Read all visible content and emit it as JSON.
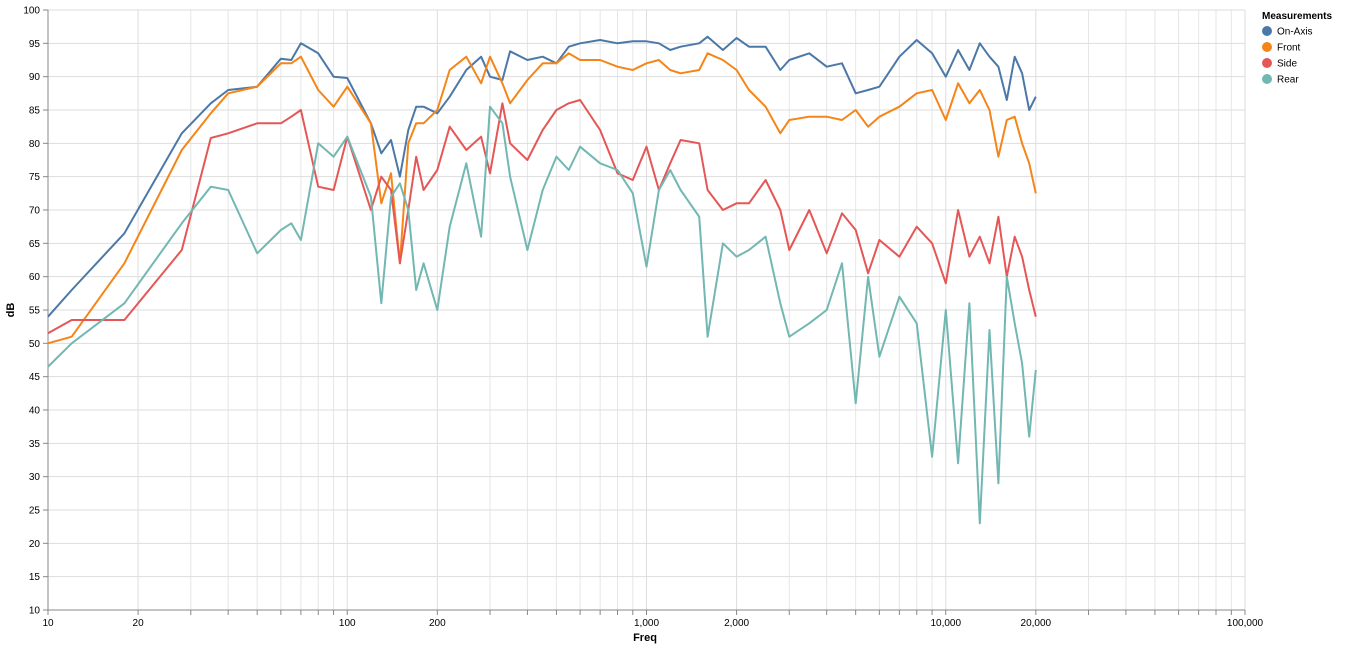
{
  "chart_data": {
    "type": "line",
    "x_label": "Freq",
    "y_label": "dB",
    "legend_title": "Measurements",
    "legend_position": "top-right",
    "log_x": true,
    "grid": true,
    "xlim": [
      10,
      100000
    ],
    "xticks": [
      10,
      20,
      100,
      200,
      {
        "value": 1000,
        "label": "1,000"
      },
      {
        "value": 2000,
        "label": "2,000"
      },
      {
        "value": 10000,
        "label": "10,000"
      },
      {
        "value": 20000,
        "label": "20,000"
      },
      {
        "value": 100000,
        "label": "100,000"
      }
    ],
    "xminor": [
      30,
      40,
      50,
      60,
      70,
      80,
      90,
      300,
      400,
      500,
      600,
      700,
      800,
      900,
      3000,
      4000,
      5000,
      6000,
      7000,
      8000,
      9000,
      30000,
      40000,
      50000,
      60000,
      70000,
      80000,
      90000
    ],
    "ylim": [
      10,
      100
    ],
    "yticks": [
      10,
      15,
      20,
      25,
      30,
      35,
      40,
      45,
      50,
      55,
      60,
      65,
      70,
      75,
      80,
      85,
      90,
      95,
      100
    ],
    "x": [
      10,
      12,
      18,
      28,
      35,
      40,
      50,
      60,
      65,
      70,
      80,
      90,
      100,
      120,
      130,
      140,
      150,
      160,
      170,
      180,
      200,
      220,
      250,
      280,
      300,
      330,
      350,
      400,
      450,
      500,
      550,
      600,
      700,
      800,
      900,
      1000,
      1100,
      1200,
      1300,
      1500,
      1600,
      1800,
      2000,
      2200,
      2500,
      2800,
      3000,
      3500,
      4000,
      4500,
      5000,
      5500,
      6000,
      7000,
      8000,
      9000,
      10000,
      11000,
      12000,
      13000,
      14000,
      15000,
      16000,
      17000,
      18000,
      19000,
      20000
    ],
    "series": [
      {
        "name": "On-Axis",
        "color": "#4c78a8",
        "values": [
          54,
          58,
          66.5,
          81.5,
          86,
          88,
          88.5,
          92.7,
          92.5,
          95,
          93.5,
          90,
          89.8,
          83,
          78.5,
          80.5,
          75,
          82,
          85.5,
          85.5,
          84.5,
          87,
          91,
          93,
          90,
          89.5,
          93.8,
          92.5,
          93,
          92,
          94.5,
          95,
          95.5,
          95,
          95.3,
          95.3,
          95,
          94,
          94.5,
          95,
          96,
          94,
          95.8,
          94.5,
          94.5,
          91,
          92.5,
          93.5,
          91.5,
          92,
          87.5,
          88,
          88.5,
          93,
          95.5,
          93.5,
          90,
          94,
          91,
          95,
          93,
          91.5,
          86.5,
          93,
          90.5,
          85,
          87
        ]
      },
      {
        "name": "Front",
        "color": "#f58518",
        "values": [
          50,
          51,
          62,
          79,
          84.5,
          87.5,
          88.5,
          92,
          92,
          93,
          88,
          85.5,
          88.5,
          83,
          71,
          75.5,
          62,
          80,
          83,
          83,
          85,
          91,
          93,
          89,
          93,
          89,
          86,
          89.5,
          92,
          92,
          93.5,
          92.5,
          92.5,
          91.5,
          91,
          92,
          92.5,
          91,
          90.5,
          91,
          93.5,
          92.5,
          91,
          88,
          85.5,
          81.5,
          83.5,
          84,
          84,
          83.5,
          85,
          82.5,
          84,
          85.5,
          87.5,
          88,
          83.5,
          89,
          86,
          88,
          85,
          78,
          83.5,
          84,
          80,
          77,
          72.5
        ]
      },
      {
        "name": "Side",
        "color": "#e45756",
        "values": [
          51.5,
          53.5,
          53.5,
          64,
          80.8,
          81.5,
          83,
          83,
          84,
          85,
          73.5,
          73,
          81,
          70,
          75,
          73,
          62,
          70,
          78,
          73,
          76,
          82.5,
          79,
          81,
          75.5,
          86,
          80,
          77.5,
          82,
          85,
          86,
          86.5,
          82,
          75.5,
          74.5,
          79.5,
          73,
          77,
          80.5,
          80,
          73,
          70,
          71,
          71,
          74.5,
          70,
          64,
          70,
          63.5,
          69.5,
          67,
          60.5,
          65.5,
          63,
          67.5,
          65,
          59,
          70,
          63,
          66,
          62,
          69,
          60,
          66,
          63,
          58,
          54
        ]
      },
      {
        "name": "Rear",
        "color": "#72b7b2",
        "values": [
          46.5,
          50,
          56,
          68,
          73.5,
          73,
          63.5,
          67,
          68,
          65.5,
          80,
          78,
          81,
          72,
          56,
          72,
          74,
          70,
          58,
          62,
          55,
          67.5,
          77,
          66,
          85.5,
          83,
          75,
          64,
          73,
          78,
          76,
          79.5,
          77,
          76,
          72.5,
          61.5,
          73,
          76,
          73,
          69,
          51,
          65,
          63,
          64,
          66,
          56,
          51,
          53,
          55,
          62,
          41,
          60,
          48,
          57,
          53,
          33,
          55,
          32,
          56,
          23,
          52,
          29,
          60,
          53,
          47,
          36,
          46
        ]
      }
    ]
  }
}
